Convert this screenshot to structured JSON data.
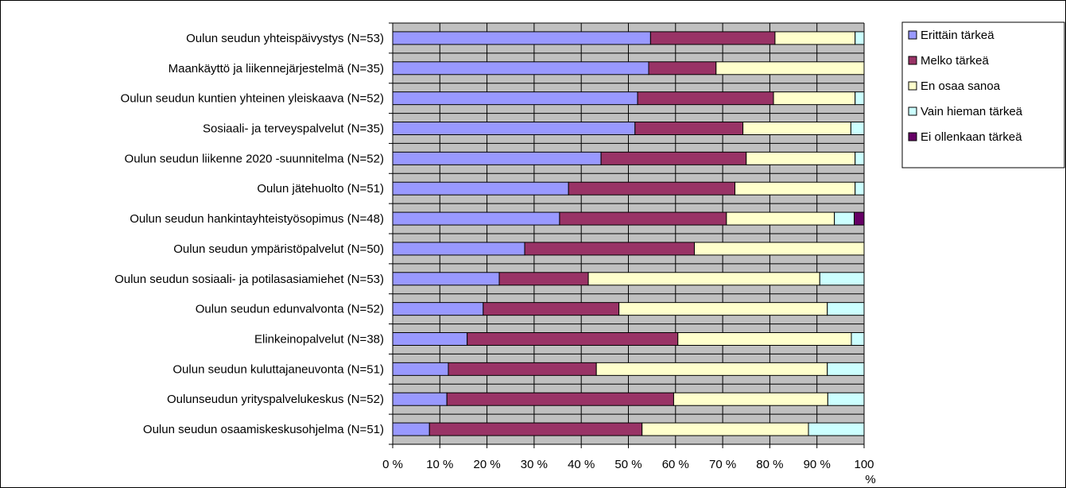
{
  "chart_data": {
    "type": "bar",
    "orientation": "horizontal",
    "stacked": "percent",
    "grid": true,
    "legend_position": "right",
    "xlim": [
      0,
      100
    ],
    "x_ticks": [
      "0 %",
      "10 %",
      "20 %",
      "30 %",
      "40 %",
      "50 %",
      "60 %",
      "70 %",
      "80 %",
      "90 %",
      "100 %"
    ],
    "categories": [
      "Oulun seudun yhteispäivystys (N=53)",
      "Maankäyttö ja liikennejärjestelmä (N=35)",
      "Oulun seudun kuntien yhteinen yleiskaava (N=52)",
      "Sosiaali- ja terveyspalvelut (N=35)",
      "Oulun seudun liikenne 2020 -suunnitelma (N=52)",
      "Oulun jätehuolto (N=51)",
      "Oulun seudun hankintayhteistyösopimus (N=48)",
      "Oulun seudun ympäristöpalvelut (N=50)",
      "Oulun seudun sosiaali- ja potilasasiamiehet (N=53)",
      "Oulun seudun edunvalvonta (N=52)",
      "Elinkeinopalvelut (N=38)",
      "Oulun seudun kuluttajaneuvonta (N=51)",
      "Oulunseudun yrityspalvelukeskus (N=52)",
      "Oulun seudun osaamiskeskusohjelma (N=51)"
    ],
    "series": [
      {
        "name": "Erittäin tärkeä",
        "color": "#9999ff",
        "values": [
          54.7,
          54.3,
          51.9,
          51.4,
          44.2,
          37.3,
          35.4,
          28.0,
          22.6,
          19.2,
          15.8,
          11.8,
          11.5,
          7.8
        ]
      },
      {
        "name": "Melko tärkeä",
        "color": "#993366",
        "values": [
          26.4,
          14.3,
          28.8,
          22.9,
          30.8,
          35.3,
          35.4,
          36.0,
          18.9,
          28.8,
          44.7,
          31.4,
          48.1,
          45.1
        ]
      },
      {
        "name": "En osaa sanoa",
        "color": "#ffffcc",
        "values": [
          17.0,
          31.4,
          17.3,
          22.9,
          23.1,
          25.5,
          22.9,
          36.0,
          49.1,
          44.2,
          36.8,
          49.0,
          32.7,
          35.3
        ]
      },
      {
        "name": "Vain hieman tärkeä",
        "color": "#ccffff",
        "values": [
          1.9,
          0,
          1.9,
          2.8,
          1.9,
          1.9,
          4.2,
          0,
          9.4,
          7.8,
          2.7,
          7.8,
          7.7,
          11.8
        ]
      },
      {
        "name": "Ei ollenkaan tärkeä",
        "color": "#660066",
        "values": [
          0,
          0,
          0,
          0,
          0,
          0,
          2.1,
          0,
          0,
          0,
          0,
          0,
          0,
          0
        ]
      }
    ]
  }
}
